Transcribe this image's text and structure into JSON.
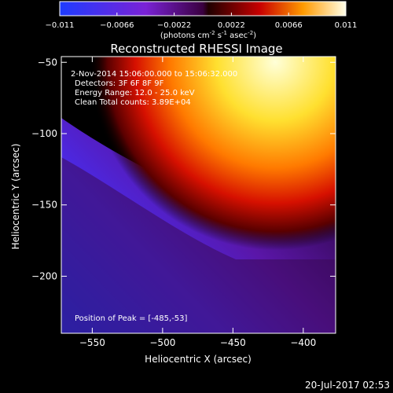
{
  "chart_data": {
    "type": "heatmap",
    "title": "Reconstructed RHESSI Image",
    "xlabel": "Heliocentric X (arcsec)",
    "ylabel": "Heliocentric Y (arcsec)",
    "xlim": [
      -572,
      -377
    ],
    "ylim": [
      -240,
      -46
    ],
    "x_ticks": [
      -550,
      -500,
      -450,
      -400
    ],
    "y_ticks": [
      -50,
      -100,
      -150,
      -200
    ],
    "colorbar": {
      "range": [
        -0.011,
        0.011
      ],
      "ticks": [
        "-0.011",
        "-0.0066",
        "-0.0022",
        "0.0022",
        "0.0066",
        "0.011"
      ],
      "label_main": "(photons cm",
      "label_exp1": "-2",
      "label_mid1": " s",
      "label_exp2": "-1",
      "label_mid2": " asec",
      "label_exp3": "-2",
      "label_end": ")"
    },
    "annotations": {
      "line1": " 2-Nov-2014 15:06:00.000 to 15:06:32.000",
      "line2": "Detectors: 3F 6F 8F 9F",
      "line3": "Energy Range: 12.0 - 25.0 keV",
      "line4": "Clean      Total counts: 3.89E+04",
      "peak": "Position of Peak = [-485,-53]"
    },
    "peak": {
      "x": -485,
      "y": -53
    },
    "image_description_values": {
      "bright_region": "upper (y > -150), positive flux up to 0.011",
      "negative_region": "lower-left, flux down to -0.011"
    }
  },
  "footer": {
    "timestamp": "20-Jul-2017 02:53"
  },
  "colors": {
    "background": "#000000",
    "text": "#ffffff"
  }
}
